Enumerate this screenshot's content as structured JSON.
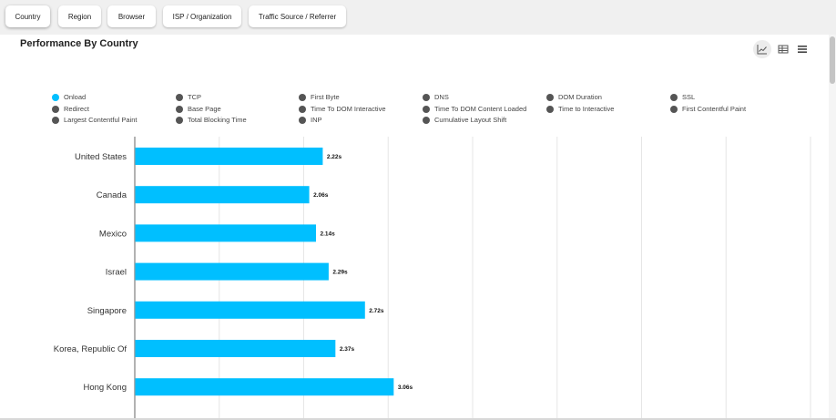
{
  "tabs": [
    {
      "label": "Country",
      "active": true
    },
    {
      "label": "Region",
      "active": false
    },
    {
      "label": "Browser",
      "active": false
    },
    {
      "label": "ISP / Organization",
      "active": false
    },
    {
      "label": "Traffic Source / Referrer",
      "active": false
    }
  ],
  "title": "Performance By Country",
  "view_buttons": [
    {
      "icon": "line-chart-icon",
      "active": true
    },
    {
      "icon": "table-icon",
      "active": false
    },
    {
      "icon": "menu-icon",
      "active": false
    }
  ],
  "legend": [
    {
      "label": "Onload",
      "color": "#00bfff"
    },
    {
      "label": "TCP",
      "color": "#555555"
    },
    {
      "label": "First Byte",
      "color": "#555555"
    },
    {
      "label": "DNS",
      "color": "#555555"
    },
    {
      "label": "DOM Duration",
      "color": "#555555"
    },
    {
      "label": "SSL",
      "color": "#555555"
    },
    {
      "label": "Redirect",
      "color": "#555555"
    },
    {
      "label": "Base Page",
      "color": "#555555"
    },
    {
      "label": "Time To DOM Interactive",
      "color": "#555555"
    },
    {
      "label": "Time To DOM Content Loaded",
      "color": "#555555"
    },
    {
      "label": "Time to Interactive",
      "color": "#555555"
    },
    {
      "label": "First Contentful Paint",
      "color": "#555555"
    },
    {
      "label": "Largest Contentful Paint",
      "color": "#555555"
    },
    {
      "label": "Total Blocking Time",
      "color": "#555555"
    },
    {
      "label": "INP",
      "color": "#555555"
    },
    {
      "label": "Cumulative Layout Shift",
      "color": "#555555"
    }
  ],
  "chart_data": {
    "type": "bar",
    "orientation": "horizontal",
    "categories": [
      "United States",
      "Canada",
      "Mexico",
      "Israel",
      "Singapore",
      "Korea, Republic Of",
      "Hong Kong"
    ],
    "series": [
      {
        "values": [
          2.22,
          2.06,
          2.14,
          2.29,
          2.72,
          2.37,
          3.06
        ],
        "labels": [
          "2.22s",
          "2.06s",
          "2.14s",
          "2.29s",
          "2.72s",
          "2.37s",
          "3.06s"
        ],
        "color": "#00bfff"
      }
    ],
    "xlim": [
      0,
      8
    ],
    "grid": true
  }
}
